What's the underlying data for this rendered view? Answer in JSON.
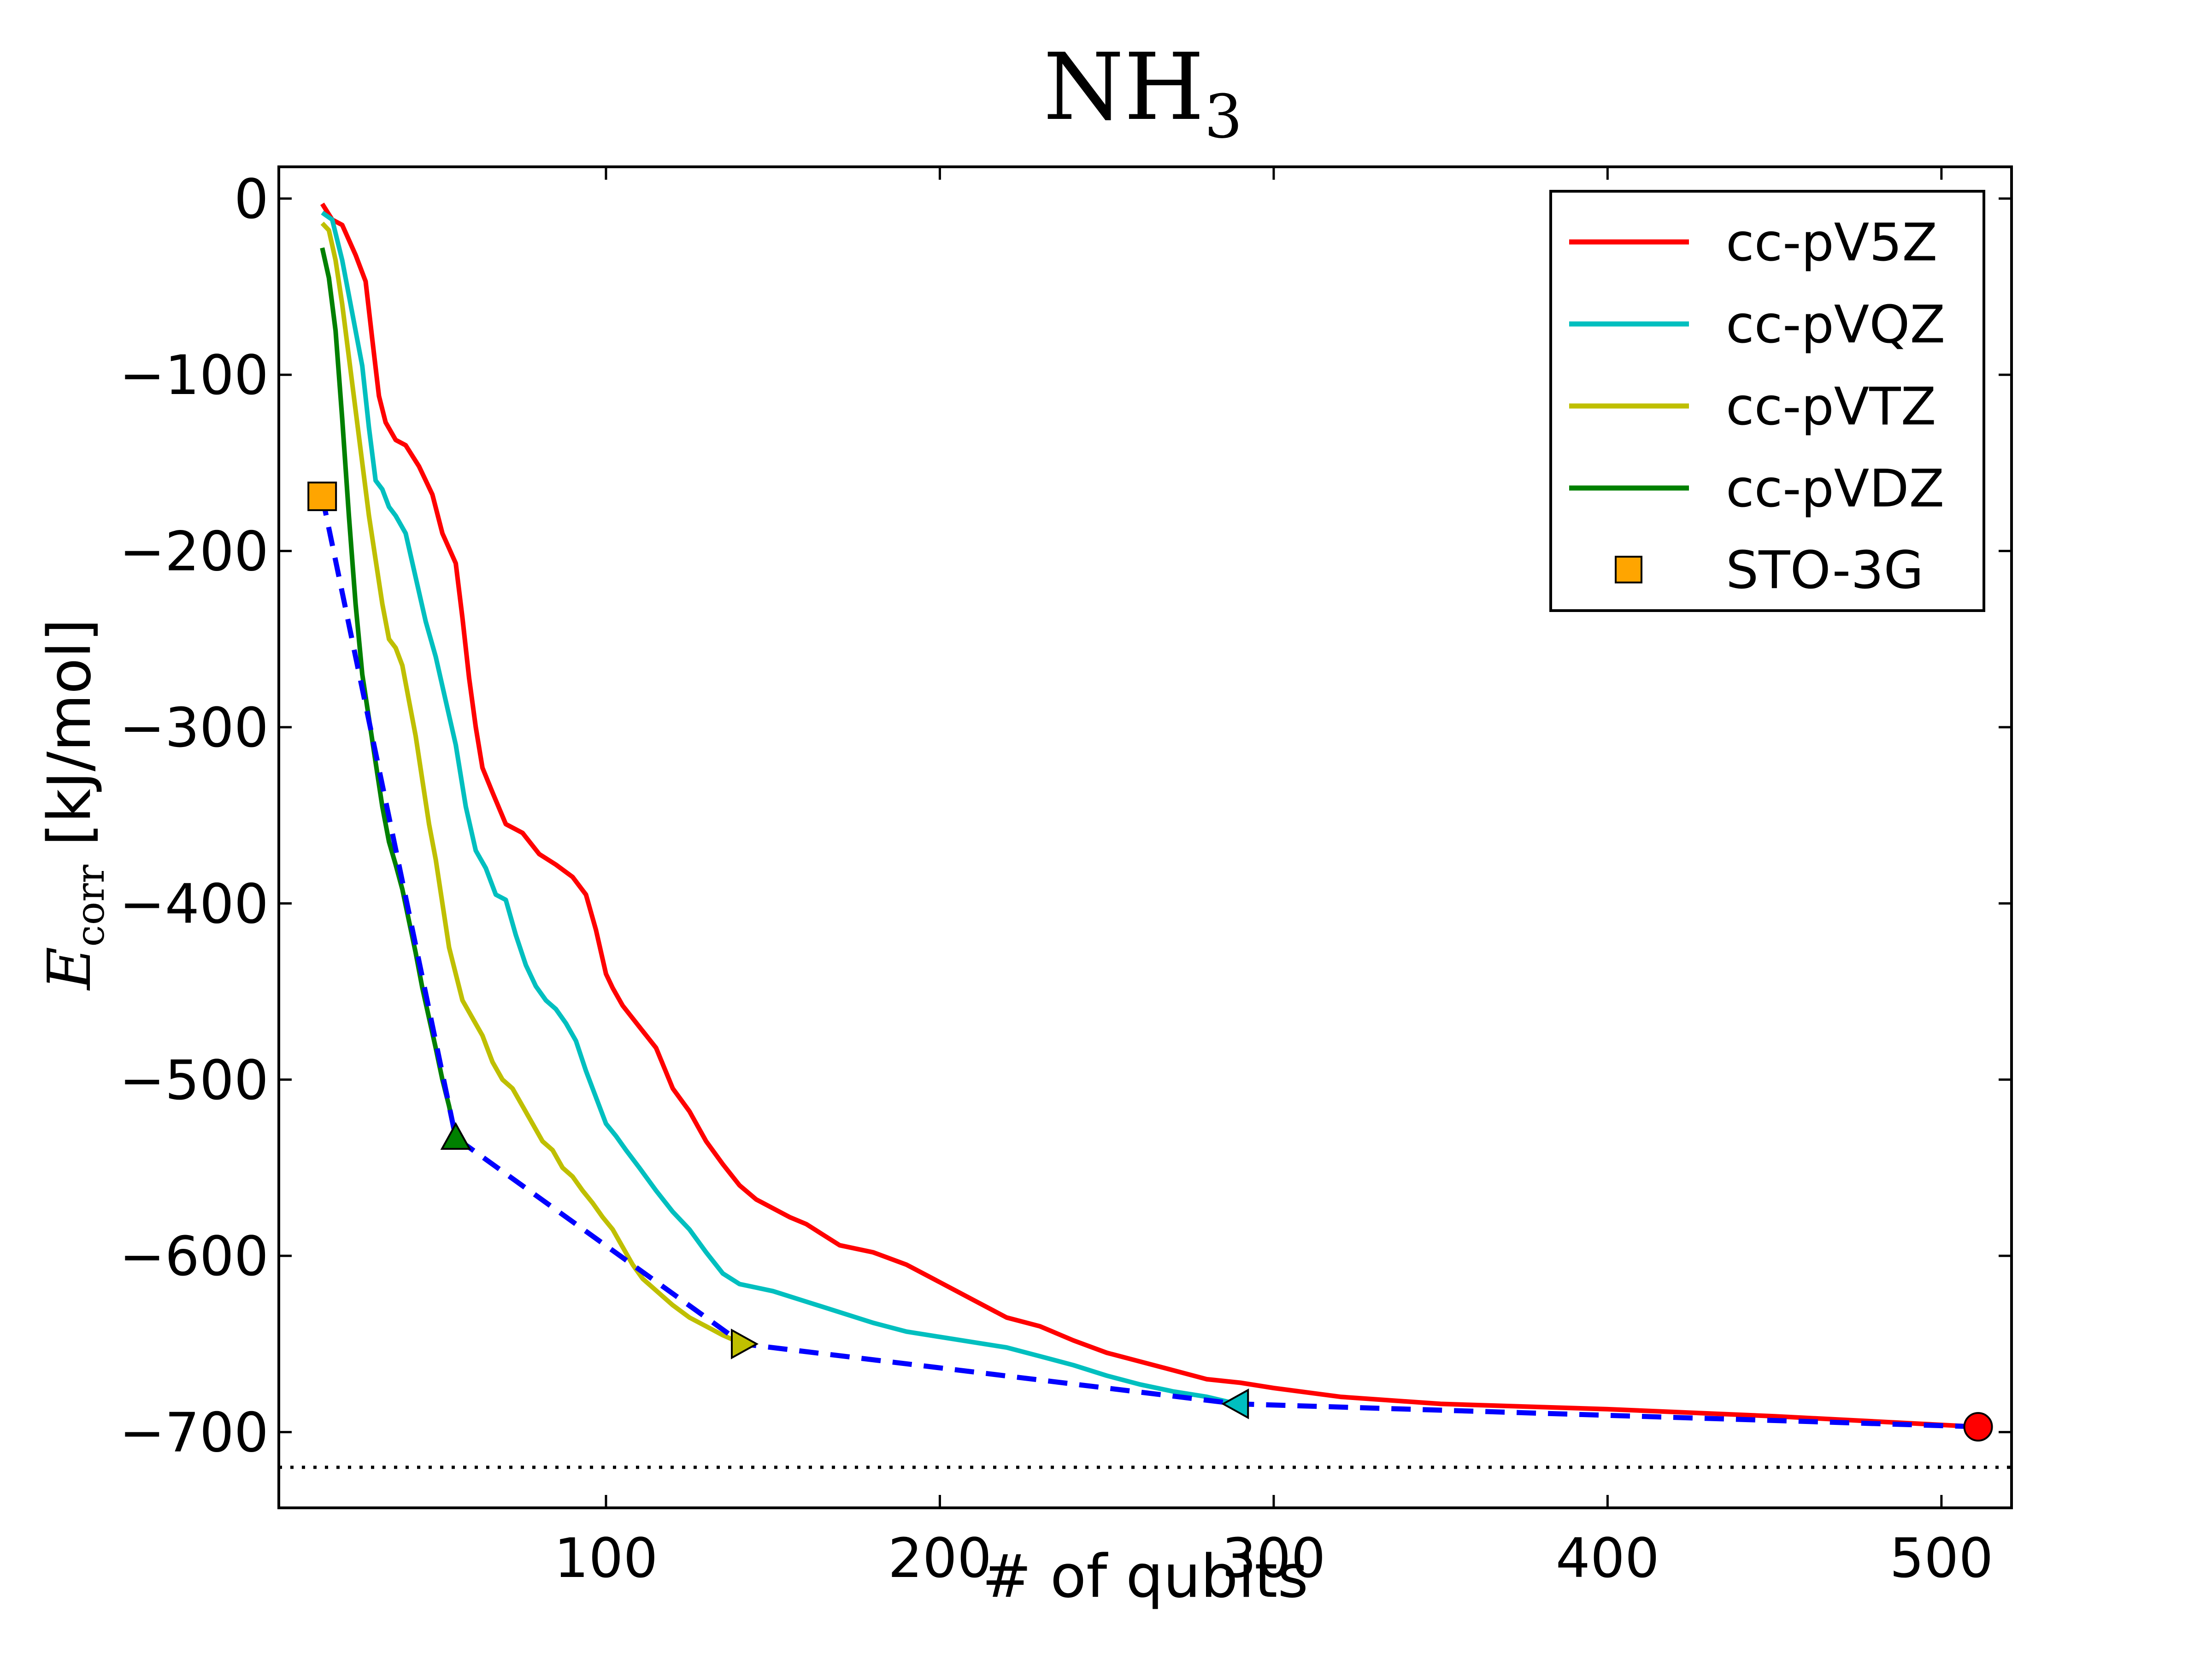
{
  "chart_data": {
    "type": "line",
    "title": {
      "main": "NH",
      "subscript": "3"
    },
    "xlabel": "# of qubits",
    "ylabel": {
      "symbol": "E",
      "subscript": "corr",
      "units": " [kJ/mol]"
    },
    "xlim": [
      2,
      521
    ],
    "ylim": [
      -743,
      18
    ],
    "xticks": [
      100,
      200,
      300,
      400,
      500
    ],
    "yticks": [
      0,
      -100,
      -200,
      -300,
      -400,
      -500,
      -600,
      -700
    ],
    "xtick_labels": [
      "100",
      "200",
      "300",
      "400",
      "500"
    ],
    "ytick_labels": [
      "0",
      "−100",
      "−200",
      "−300",
      "−400",
      "−500",
      "−600",
      "−700"
    ],
    "grid": false,
    "legend_position": "top-right",
    "series": [
      {
        "name": "cc-pV5Z",
        "color": "#ff0000",
        "style": "solid",
        "end_marker": "circle",
        "x": [
          15,
          18,
          21,
          25,
          28,
          30,
          32,
          34,
          37,
          40,
          44,
          48,
          51,
          55,
          57,
          59,
          61,
          63,
          66,
          70,
          75,
          80,
          85,
          90,
          94,
          97,
          100,
          102,
          105,
          110,
          115,
          120,
          125,
          130,
          135,
          140,
          145,
          150,
          155,
          160,
          165,
          170,
          180,
          190,
          200,
          210,
          220,
          230,
          240,
          250,
          260,
          270,
          280,
          290,
          300,
          320,
          350,
          400,
          450,
          511
        ],
        "y": [
          -3,
          -12,
          -15,
          -32,
          -47,
          -80,
          -112,
          -127,
          -137,
          -140,
          -152,
          -168,
          -190,
          -207,
          -238,
          -272,
          -300,
          -323,
          -337,
          -355,
          -360,
          -372,
          -378,
          -385,
          -395,
          -415,
          -440,
          -448,
          -458,
          -470,
          -482,
          -505,
          -518,
          -535,
          -548,
          -560,
          -568,
          -573,
          -578,
          -582,
          -588,
          -594,
          -598,
          -605,
          -615,
          -625,
          -635,
          -640,
          -648,
          -655,
          -660,
          -665,
          -670,
          -672,
          -675,
          -680,
          -684,
          -687,
          -691,
          -697
        ]
      },
      {
        "name": "cc-pVQZ",
        "color": "#00bfbf",
        "style": "solid",
        "end_marker": "triangle-left",
        "x": [
          15,
          18,
          21,
          24,
          27,
          29,
          31,
          33,
          35,
          37,
          40,
          43,
          46,
          49,
          52,
          55,
          58,
          61,
          64,
          67,
          70,
          73,
          76,
          79,
          82,
          85,
          88,
          91,
          94,
          97,
          100,
          103,
          106,
          110,
          115,
          120,
          125,
          130,
          135,
          140,
          145,
          150,
          160,
          170,
          180,
          190,
          200,
          210,
          220,
          230,
          240,
          250,
          260,
          270,
          280,
          289
        ],
        "y": [
          -8,
          -12,
          -35,
          -65,
          -95,
          -130,
          -160,
          -165,
          -175,
          -180,
          -190,
          -215,
          -240,
          -260,
          -285,
          -310,
          -345,
          -370,
          -380,
          -395,
          -398,
          -418,
          -435,
          -447,
          -455,
          -460,
          -468,
          -478,
          -495,
          -510,
          -525,
          -532,
          -540,
          -550,
          -563,
          -575,
          -585,
          -598,
          -610,
          -616,
          -618,
          -620,
          -626,
          -632,
          -638,
          -643,
          -646,
          -649,
          -652,
          -657,
          -662,
          -668,
          -673,
          -677,
          -680,
          -684
        ]
      },
      {
        "name": "cc-pVTZ",
        "color": "#bfbf00",
        "style": "solid",
        "end_marker": "triangle-right",
        "x": [
          15,
          17,
          19,
          21,
          23,
          25,
          27,
          29,
          31,
          33,
          35,
          37,
          39,
          41,
          43,
          45,
          47,
          49,
          51,
          53,
          55,
          57,
          60,
          63,
          66,
          69,
          72,
          75,
          78,
          81,
          84,
          87,
          90,
          93,
          96,
          99,
          102,
          105,
          108,
          111,
          114,
          117,
          120,
          125,
          130,
          135,
          141
        ],
        "y": [
          -14,
          -18,
          -35,
          -60,
          -90,
          -120,
          -150,
          -180,
          -205,
          -230,
          -250,
          -255,
          -265,
          -285,
          -305,
          -330,
          -355,
          -375,
          -400,
          -425,
          -440,
          -455,
          -465,
          -475,
          -490,
          -500,
          -505,
          -515,
          -525,
          -535,
          -540,
          -550,
          -555,
          -563,
          -570,
          -578,
          -585,
          -595,
          -605,
          -613,
          -618,
          -623,
          -628,
          -635,
          -640,
          -645,
          -650
        ]
      },
      {
        "name": "cc-pVDZ",
        "color": "#008000",
        "style": "solid",
        "end_marker": "triangle-up",
        "x": [
          15,
          17,
          19,
          21,
          23,
          25,
          27,
          29,
          31,
          33,
          35,
          37,
          39,
          41,
          43,
          45,
          47,
          49,
          51,
          53,
          55
        ],
        "y": [
          -28,
          -45,
          -75,
          -125,
          -180,
          -230,
          -270,
          -295,
          -320,
          -345,
          -365,
          -378,
          -392,
          -410,
          -428,
          -448,
          -465,
          -482,
          -500,
          -515,
          -533
        ]
      },
      {
        "name": "STO-3G",
        "color": "#ffa500",
        "style": "marker",
        "marker": "square",
        "x": [
          15
        ],
        "y": [
          -169
        ]
      },
      {
        "name": "",
        "color": "#0000ff",
        "style": "dashed",
        "x": [
          15,
          55,
          141,
          289,
          511
        ],
        "y": [
          -169,
          -533,
          -650,
          -684,
          -697
        ]
      },
      {
        "name": "",
        "color": "#000000",
        "style": "dotted",
        "x": [
          2,
          521
        ],
        "y": [
          -720,
          -720
        ]
      }
    ]
  }
}
